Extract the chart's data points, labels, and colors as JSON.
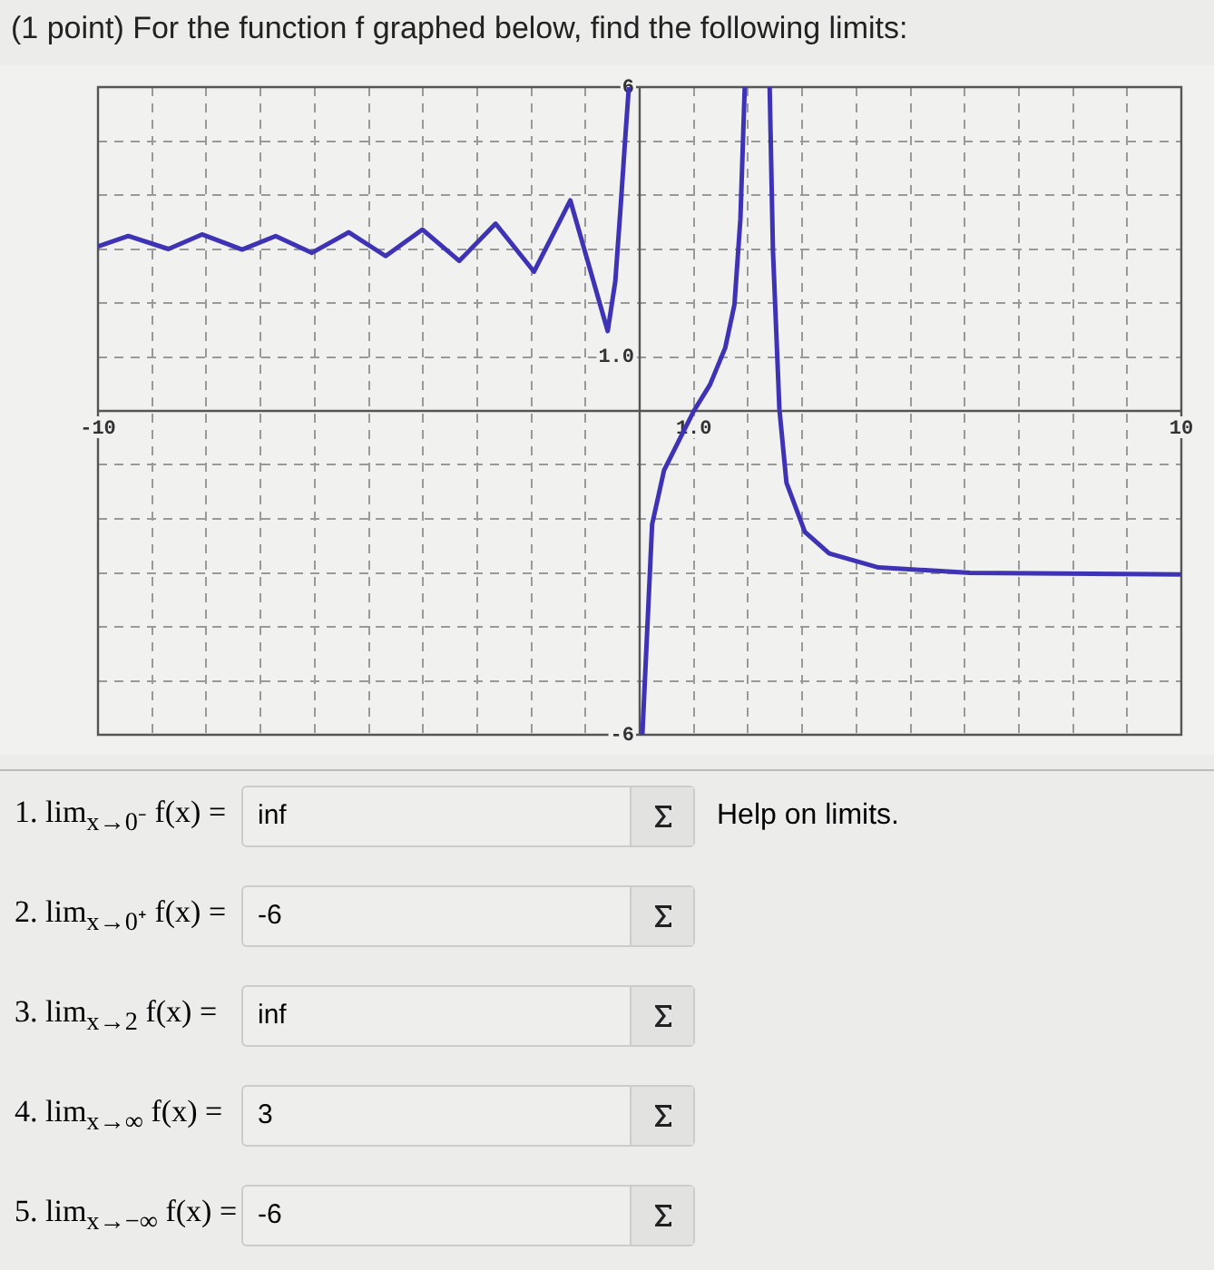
{
  "chart_data": {
    "type": "line",
    "title": "(1 point) For the function f graphed below, find the following limits:",
    "x": [
      -10,
      -9.44,
      -8.7,
      -8.08,
      -7.34,
      -6.72,
      -6.05,
      -5.37,
      -4.69,
      -4.01,
      -3.33,
      -2.66,
      -1.95,
      -1.28,
      -0.59,
      -0.45,
      -0.35,
      -0.27,
      -0.2,
      -0.1,
      0.05,
      0.23,
      0.45,
      0.79,
      1.0,
      1.3,
      1.58,
      1.75,
      1.86,
      1.94,
      2.2,
      2.4,
      2.46,
      2.58,
      2.71,
      3.05,
      3.5,
      4.41,
      6.1,
      10
    ],
    "series": [
      {
        "color": "#3f33b5",
        "values": [
          3.05,
          3.24,
          3.0,
          3.27,
          2.99,
          3.24,
          2.93,
          3.31,
          2.87,
          3.36,
          2.78,
          3.47,
          2.58,
          3.9,
          1.48,
          2.4,
          3.8,
          5.0,
          6,
          null,
          -6,
          -2.1,
          -1.1,
          -0.42,
          0,
          0.49,
          1.17,
          1.97,
          3.56,
          6,
          null,
          6,
          2.99,
          0.03,
          -1.33,
          -2.24,
          -2.64,
          -2.9,
          -3.0,
          -3.03
        ]
      }
    ],
    "xlim": [
      -10,
      10
    ],
    "ylim": [
      -6,
      6
    ],
    "xticks": [
      -10,
      {
        "value": -9,
        "label": null
      },
      {
        "value": -8,
        "label": null
      },
      {
        "value": -7,
        "label": null
      },
      {
        "value": -6,
        "label": null
      },
      {
        "value": -5,
        "label": null
      },
      {
        "value": -4,
        "label": null
      },
      {
        "value": -3,
        "label": null
      },
      {
        "value": -2,
        "label": null
      },
      {
        "value": -1,
        "label": null
      },
      {
        "value": 0,
        "label": null
      },
      {
        "value": 1,
        "label": "1.0"
      },
      {
        "value": 2,
        "label": null
      },
      {
        "value": 3,
        "label": null
      },
      {
        "value": 4,
        "label": null
      },
      {
        "value": 5,
        "label": null
      },
      {
        "value": 6,
        "label": null
      },
      {
        "value": 7,
        "label": null
      },
      {
        "value": 8,
        "label": null
      },
      {
        "value": 9,
        "label": null
      },
      10
    ],
    "yticks": [
      -6,
      {
        "value": -5,
        "label": null
      },
      {
        "value": -4,
        "label": null
      },
      {
        "value": -3,
        "label": null
      },
      {
        "value": -2,
        "label": null
      },
      {
        "value": -1,
        "label": null
      },
      {
        "value": 0,
        "label": null
      },
      {
        "value": 1,
        "label": "1.0"
      },
      {
        "value": 2,
        "label": null
      },
      {
        "value": 3,
        "label": null
      },
      {
        "value": 4,
        "label": null
      },
      {
        "value": 5,
        "label": null
      },
      6
    ],
    "grid": true,
    "marker": "none",
    "line_style": "solid",
    "annotations": [
      "1. lim$_{x→0⁻}$ f(x) =",
      "inf",
      "2. lim$_{x→0⁺}$ f(x) =",
      "-6",
      "3. lim$_{x→2}$ f(x) =",
      "inf",
      "4. lim$_{x→∞}$ f(x) =",
      "3",
      "5. lim$_{x→−∞}$ f(x) =",
      "-6",
      "Help on limits."
    ]
  }
}
